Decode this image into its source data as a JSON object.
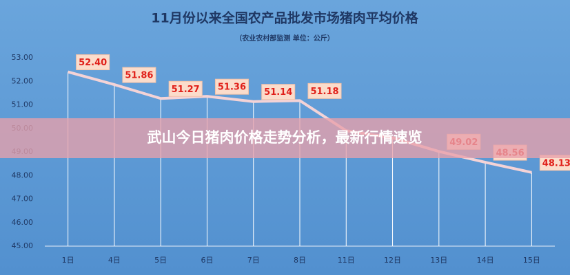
{
  "banner": "武山今日猪肉价格走势分析，最新行情速览",
  "chart_data": {
    "type": "line",
    "title": "11月份以来全国农产品批发市场猪肉平均价格",
    "subtitle": "（农业农村部监测 单位：公斤）",
    "categories": [
      "1日",
      "4日",
      "5日",
      "6日",
      "7日",
      "8日",
      "11日",
      "12日",
      "13日",
      "14日",
      "15日"
    ],
    "values": [
      52.4,
      51.86,
      51.27,
      51.36,
      51.14,
      51.18,
      49.9,
      49.6,
      49.02,
      48.56,
      48.13
    ],
    "value_labels": [
      "52.40",
      "51.86",
      "51.27",
      "51.36",
      "51.14",
      "51.18",
      null,
      null,
      "49.02",
      "48.56",
      "48.13"
    ],
    "color": "#f4d3d6",
    "ylim": [
      45,
      53
    ],
    "yticks": [
      {
        "value": 45,
        "label": "45.00"
      },
      {
        "value": 46,
        "label": "46.00"
      },
      {
        "value": 47,
        "label": "47.00"
      },
      {
        "value": 48,
        "label": "48.00"
      },
      {
        "value": 49,
        "label": "49.00"
      },
      {
        "value": 50,
        "label": "50.00"
      },
      {
        "value": 51,
        "label": "51.00"
      },
      {
        "value": 52,
        "label": "52.00"
      },
      {
        "value": 53,
        "label": "53.00"
      }
    ],
    "drop_lines": true
  }
}
